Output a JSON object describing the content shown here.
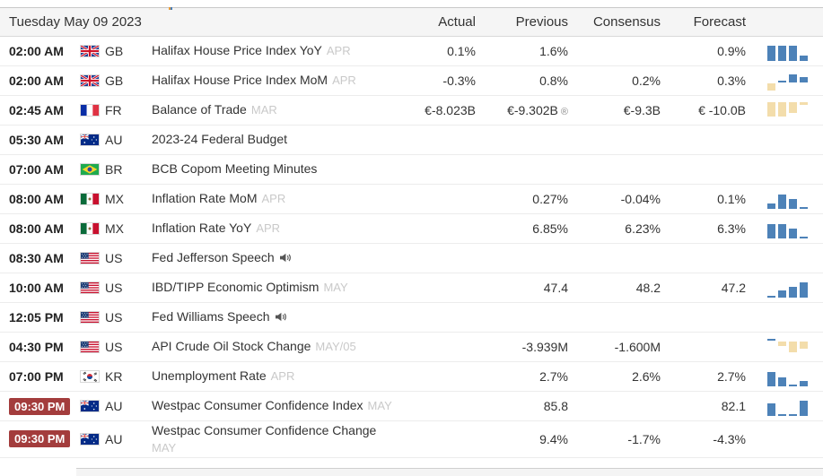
{
  "colors": {
    "green": "#067a06",
    "red": "#a00e0e",
    "neutral": "#333333",
    "blue_bar": "#4d82b8",
    "tan_bar": "#f3ddab",
    "badge_bg": "#a33c3c",
    "badge_text": "#ffffff",
    "header_bg": "#f5f5f5",
    "period_text": "#c9c9c9"
  },
  "header": {
    "date": "Tuesday May 09 2023",
    "columns": [
      "Actual",
      "Previous",
      "Consensus",
      "Forecast"
    ]
  },
  "rows": [
    {
      "time": "02:00 AM",
      "badge": false,
      "flag": "gb",
      "code": "GB",
      "event": "Halifax House Price Index YoY",
      "period": "APR",
      "period_block": false,
      "speech": false,
      "actual": {
        "text": "0.1%",
        "color": "n"
      },
      "previous": {
        "text": "1.6%",
        "color": "g",
        "revised": false
      },
      "consensus": {
        "text": "",
        "color": "n"
      },
      "forecast": {
        "text": "0.9%",
        "color": "n"
      },
      "spark": {
        "bars": [
          [
            17,
            "b",
            0
          ],
          [
            17,
            "b",
            0
          ],
          [
            17,
            "b",
            0
          ],
          [
            6,
            "b",
            0
          ]
        ]
      }
    },
    {
      "time": "02:00 AM",
      "badge": false,
      "flag": "gb",
      "code": "GB",
      "event": "Halifax House Price Index MoM",
      "period": "APR",
      "period_block": false,
      "speech": false,
      "actual": {
        "text": "-0.3%",
        "color": "n"
      },
      "previous": {
        "text": "0.8%",
        "color": "g",
        "revised": false
      },
      "consensus": {
        "text": "0.2%",
        "color": "n"
      },
      "forecast": {
        "text": "0.3%",
        "color": "n"
      },
      "spark": {
        "bars": [
          [
            8,
            "t",
            0
          ],
          [
            2,
            "b",
            9
          ],
          [
            9,
            "b",
            9
          ],
          [
            6,
            "b",
            9
          ]
        ]
      }
    },
    {
      "time": "02:45 AM",
      "badge": false,
      "flag": "fr",
      "code": "FR",
      "event": "Balance of Trade",
      "period": "MAR",
      "period_block": false,
      "speech": false,
      "actual": {
        "text": "€-8.023B",
        "color": "n"
      },
      "previous": {
        "text": "€-9.302B",
        "color": "r",
        "revised": true
      },
      "consensus": {
        "text": "€-9.3B",
        "color": "n"
      },
      "forecast": {
        "text": "€ -10.0B",
        "color": "n"
      },
      "spark": {
        "bars": [
          [
            16,
            "t",
            4
          ],
          [
            16,
            "t",
            4
          ],
          [
            12,
            "t",
            8
          ],
          [
            3,
            "t",
            17
          ]
        ]
      }
    },
    {
      "time": "05:30 AM",
      "badge": false,
      "flag": "au",
      "code": "AU",
      "event": "2023-24 Federal Budget",
      "period": "",
      "period_block": false,
      "speech": false,
      "actual": {
        "text": "",
        "color": "n"
      },
      "previous": {
        "text": "",
        "color": "n",
        "revised": false
      },
      "consensus": {
        "text": "",
        "color": "n"
      },
      "forecast": {
        "text": "",
        "color": "n"
      },
      "spark": null
    },
    {
      "time": "07:00 AM",
      "badge": false,
      "flag": "br",
      "code": "BR",
      "event": "BCB Copom Meeting Minutes",
      "period": "",
      "period_block": false,
      "speech": false,
      "actual": {
        "text": "",
        "color": "n"
      },
      "previous": {
        "text": "",
        "color": "n",
        "revised": false
      },
      "consensus": {
        "text": "",
        "color": "n"
      },
      "forecast": {
        "text": "",
        "color": "n"
      },
      "spark": null
    },
    {
      "time": "08:00 AM",
      "badge": false,
      "flag": "mx",
      "code": "MX",
      "event": "Inflation Rate MoM",
      "period": "APR",
      "period_block": false,
      "speech": false,
      "actual": {
        "text": "",
        "color": "n"
      },
      "previous": {
        "text": "0.27%",
        "color": "g",
        "revised": false
      },
      "consensus": {
        "text": "-0.04%",
        "color": "n"
      },
      "forecast": {
        "text": "0.1%",
        "color": "n"
      },
      "spark": {
        "bars": [
          [
            6,
            "b",
            0
          ],
          [
            16,
            "b",
            0
          ],
          [
            11,
            "b",
            0
          ],
          [
            2,
            "b",
            0
          ]
        ]
      }
    },
    {
      "time": "08:00 AM",
      "badge": false,
      "flag": "mx",
      "code": "MX",
      "event": "Inflation Rate YoY",
      "period": "APR",
      "period_block": false,
      "speech": false,
      "actual": {
        "text": "",
        "color": "n"
      },
      "previous": {
        "text": "6.85%",
        "color": "g",
        "revised": false
      },
      "consensus": {
        "text": "6.23%",
        "color": "n"
      },
      "forecast": {
        "text": "6.3%",
        "color": "n"
      },
      "spark": {
        "bars": [
          [
            16,
            "b",
            0
          ],
          [
            16,
            "b",
            0
          ],
          [
            11,
            "b",
            0
          ],
          [
            2,
            "b",
            0
          ]
        ]
      }
    },
    {
      "time": "08:30 AM",
      "badge": false,
      "flag": "us",
      "code": "US",
      "event": "Fed Jefferson Speech",
      "period": "",
      "period_block": false,
      "speech": true,
      "actual": {
        "text": "",
        "color": "n"
      },
      "previous": {
        "text": "",
        "color": "n",
        "revised": false
      },
      "consensus": {
        "text": "",
        "color": "n"
      },
      "forecast": {
        "text": "",
        "color": "n"
      },
      "spark": null
    },
    {
      "time": "10:00 AM",
      "badge": false,
      "flag": "us",
      "code": "US",
      "event": "IBD/TIPP Economic Optimism",
      "period": "MAY",
      "period_block": false,
      "speech": false,
      "actual": {
        "text": "",
        "color": "n"
      },
      "previous": {
        "text": "47.4",
        "color": "g",
        "revised": false
      },
      "consensus": {
        "text": "48.2",
        "color": "n"
      },
      "forecast": {
        "text": "47.2",
        "color": "n"
      },
      "spark": {
        "bars": [
          [
            2,
            "b",
            0
          ],
          [
            8,
            "b",
            0
          ],
          [
            12,
            "b",
            0
          ],
          [
            17,
            "b",
            0
          ]
        ]
      }
    },
    {
      "time": "12:05 PM",
      "badge": false,
      "flag": "us",
      "code": "US",
      "event": "Fed Williams Speech",
      "period": "",
      "period_block": false,
      "speech": true,
      "actual": {
        "text": "",
        "color": "n"
      },
      "previous": {
        "text": "",
        "color": "n",
        "revised": false
      },
      "consensus": {
        "text": "",
        "color": "n"
      },
      "forecast": {
        "text": "",
        "color": "n"
      },
      "spark": null
    },
    {
      "time": "04:30 PM",
      "badge": false,
      "flag": "us",
      "code": "US",
      "event": "API Crude Oil Stock Change",
      "period": "MAY/05",
      "period_block": false,
      "speech": false,
      "actual": {
        "text": "",
        "color": "n"
      },
      "previous": {
        "text": "-3.939M",
        "color": "r",
        "revised": false
      },
      "consensus": {
        "text": "-1.600M",
        "color": "n"
      },
      "forecast": {
        "text": "",
        "color": "n"
      },
      "spark": {
        "bars": [
          [
            2,
            "b",
            18
          ],
          [
            5,
            "t",
            12
          ],
          [
            12,
            "t",
            5
          ],
          [
            8,
            "t",
            9
          ]
        ]
      }
    },
    {
      "time": "07:00 PM",
      "badge": false,
      "flag": "kr",
      "code": "KR",
      "event": "Unemployment Rate",
      "period": "APR",
      "period_block": false,
      "speech": false,
      "actual": {
        "text": "",
        "color": "n"
      },
      "previous": {
        "text": "2.7%",
        "color": "g",
        "revised": false
      },
      "consensus": {
        "text": "2.6%",
        "color": "n"
      },
      "forecast": {
        "text": "2.7%",
        "color": "n"
      },
      "spark": {
        "bars": [
          [
            16,
            "b",
            0
          ],
          [
            10,
            "b",
            0
          ],
          [
            2,
            "b",
            0
          ],
          [
            6,
            "b",
            0
          ]
        ]
      }
    },
    {
      "time": "09:30 PM",
      "badge": true,
      "flag": "au",
      "code": "AU",
      "event": "Westpac Consumer Confidence Index",
      "period": "MAY",
      "period_block": false,
      "speech": false,
      "actual": {
        "text": "",
        "color": "n"
      },
      "previous": {
        "text": "85.8",
        "color": "g",
        "revised": false
      },
      "consensus": {
        "text": "",
        "color": "n"
      },
      "forecast": {
        "text": "82.1",
        "color": "n"
      },
      "spark": {
        "bars": [
          [
            14,
            "b",
            0
          ],
          [
            2,
            "b",
            0
          ],
          [
            2,
            "b",
            0
          ],
          [
            17,
            "b",
            0
          ]
        ]
      }
    },
    {
      "time": "09:30 PM",
      "badge": true,
      "flag": "au",
      "code": "AU",
      "event": "Westpac Consumer Confidence Change",
      "period": "MAY",
      "period_block": true,
      "speech": false,
      "actual": {
        "text": "",
        "color": "n"
      },
      "previous": {
        "text": "9.4%",
        "color": "g",
        "revised": false
      },
      "consensus": {
        "text": "-1.7%",
        "color": "r"
      },
      "forecast": {
        "text": "-4.3%",
        "color": "r"
      },
      "spark": null
    }
  ]
}
